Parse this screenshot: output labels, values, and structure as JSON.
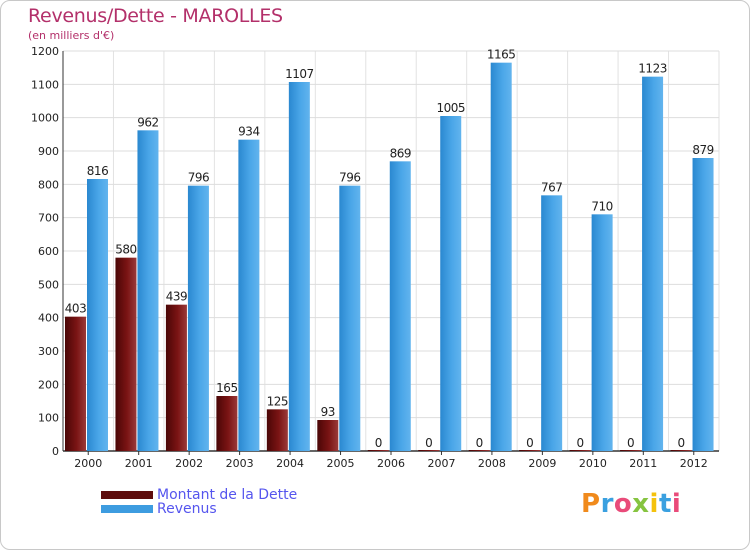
{
  "title": "Revenus/Dette - MAROLLES",
  "subtitle": "(en milliers d'€)",
  "logo_text": "Proxiti",
  "colors": {
    "dette": "#7a1414",
    "revenus": "#3d9ce0",
    "title": "#b3306a",
    "legend_text": "#5555ee"
  },
  "chart_data": {
    "type": "bar",
    "categories": [
      "2000",
      "2001",
      "2002",
      "2003",
      "2004",
      "2005",
      "2006",
      "2007",
      "2008",
      "2009",
      "2010",
      "2011",
      "2012"
    ],
    "series": [
      {
        "name": "Montant de la Dette",
        "values": [
          403,
          580,
          439,
          165,
          125,
          93,
          0,
          0,
          0,
          0,
          0,
          0,
          0
        ]
      },
      {
        "name": "Revenus",
        "values": [
          816,
          962,
          796,
          934,
          1107,
          796,
          869,
          1005,
          1165,
          767,
          710,
          1123,
          879
        ]
      }
    ],
    "yticks": [
      0,
      100,
      200,
      300,
      400,
      500,
      600,
      700,
      800,
      900,
      1000,
      1100,
      1200
    ],
    "ylim": [
      0,
      1200
    ],
    "legend_position": "bottom-left",
    "grid": true
  }
}
